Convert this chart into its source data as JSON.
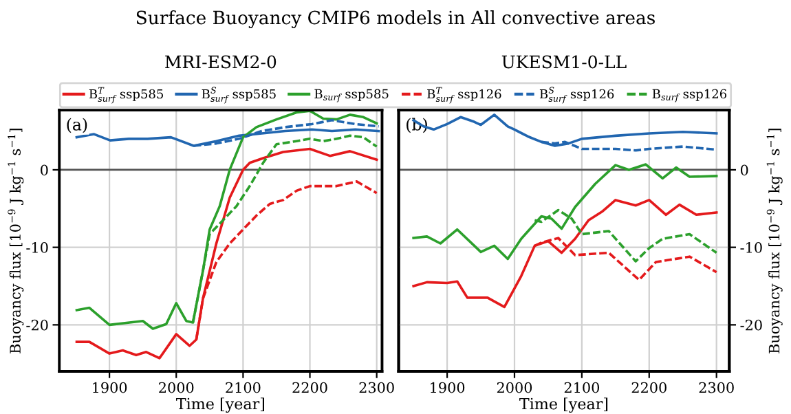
{
  "chart_data": [
    {
      "type": "line",
      "title": "MRI-ESM2-0",
      "xlabel": "Time [year]",
      "ylabel": "Buoyancy flux [10$^{−9}$ J kg$^{−1}$ s$^{−1}$]",
      "annotations": [
        "Surface Buoyancy CMIP6 models in All convective areas",
        {
          "text": "(a)"
        }
      ],
      "xlim": [
        1825,
        2308
      ],
      "xticks": [
        1900,
        2000,
        2100,
        2200,
        2300
      ],
      "ylim": [
        -26,
        7.7
      ],
      "yticks": [
        0,
        -10,
        -20
      ],
      "grid": true,
      "legend": "top",
      "ref_lines": [
        {
          "axis": "y",
          "value": 0,
          "color": "#555555"
        }
      ],
      "series": [
        {
          "name": "B$^{T}$$_{surf}$ ssp585",
          "color": "#e41a1c",
          "line_style": "solid",
          "x": [
            1851,
            1870,
            1900,
            1920,
            1940,
            1955,
            1975,
            2000,
            2020,
            2030,
            2040,
            2060,
            2080,
            2100,
            2110,
            2130,
            2160,
            2200,
            2230,
            2260,
            2300
          ],
          "values": [
            -22.2,
            -22.2,
            -23.7,
            -23.3,
            -23.9,
            -23.5,
            -24.3,
            -21.2,
            -22.7,
            -21.9,
            -16.6,
            -9.5,
            -3.6,
            0,
            0.9,
            1.5,
            2.3,
            2.7,
            1.8,
            2.4,
            1.3
          ]
        },
        {
          "name": "B$^{S}$$_{surf}$ ssp585",
          "color": "#2166b0",
          "line_style": "solid",
          "x": [
            1851,
            1877,
            1901,
            1929,
            1957,
            1992,
            2026,
            2060,
            2094,
            2128,
            2163,
            2203,
            2233,
            2268,
            2303
          ],
          "values": [
            4.2,
            4.6,
            3.8,
            4.0,
            4.0,
            4.2,
            3.1,
            3.7,
            4.4,
            4.7,
            5.0,
            5.2,
            5.0,
            5.2,
            5.0
          ]
        },
        {
          "name": "B$_{surf}$ ssp585",
          "color": "#2ca02c",
          "line_style": "solid",
          "x": [
            1851,
            1870,
            1900,
            1930,
            1950,
            1965,
            1985,
            2000,
            2015,
            2025,
            2040,
            2050,
            2065,
            2080,
            2100,
            2120,
            2150,
            2180,
            2200,
            2220,
            2240,
            2260,
            2280,
            2300
          ],
          "values": [
            -18.1,
            -17.8,
            -20.0,
            -19.7,
            -19.5,
            -20.5,
            -19.9,
            -17.2,
            -19.5,
            -19.7,
            -13.0,
            -7.7,
            -4.7,
            0,
            4.2,
            5.5,
            6.5,
            7.4,
            7.6,
            6.6,
            6.5,
            7.1,
            6.8,
            6.0
          ]
        },
        {
          "name": "B$^{T}$$_{surf}$ ssp126",
          "color": "#e41a1c",
          "line_style": "dashed",
          "x": [
            2030,
            2040,
            2060,
            2080,
            2100,
            2120,
            2140,
            2160,
            2180,
            2200,
            2240,
            2270,
            2300
          ],
          "values": [
            -21.9,
            -16.6,
            -11.9,
            -9.5,
            -7.7,
            -5.9,
            -4.4,
            -3.9,
            -2.7,
            -2.1,
            -2.1,
            -1.5,
            -3.0
          ]
        },
        {
          "name": "B$^{S}$$_{surf}$ ssp126",
          "color": "#2166b0",
          "line_style": "dashed",
          "x": [
            2026,
            2060,
            2094,
            2128,
            2163,
            2203,
            2233,
            2268,
            2303
          ],
          "values": [
            3.1,
            3.4,
            4.0,
            5.0,
            5.5,
            5.9,
            6.4,
            5.9,
            5.6
          ]
        },
        {
          "name": "B$_{surf}$ ssp126",
          "color": "#2ca02c",
          "line_style": "dashed",
          "x": [
            2025,
            2040,
            2050,
            2070,
            2090,
            2110,
            2130,
            2150,
            2180,
            2200,
            2220,
            2240,
            2260,
            2280,
            2300
          ],
          "values": [
            -19.7,
            -13.0,
            -8.3,
            -6.5,
            -4.7,
            -2.1,
            0.9,
            3.3,
            3.7,
            4.0,
            3.7,
            4.0,
            4.4,
            4.2,
            3.0
          ]
        }
      ]
    },
    {
      "type": "line",
      "title": "UKESM1-0-LL",
      "xlabel": "Time [year]",
      "y2label": "Buoyancy flux [10$^{−9}$ J kg$^{−1}$ s$^{−1}$]",
      "annotations": [
        {
          "text": "(b)"
        }
      ],
      "xlim": [
        1828,
        2319
      ],
      "xticks": [
        1900,
        2000,
        2100,
        2200,
        2300
      ],
      "y2lim": [
        -26,
        7.7
      ],
      "y2ticks": [
        0,
        -10,
        -20
      ],
      "grid": true,
      "ref_lines": [
        {
          "axis": "y2",
          "value": 0,
          "color": "#555555"
        }
      ],
      "series": [
        {
          "axis": "y2",
          "color": "#e41a1c",
          "line_style": "solid",
          "x": [
            1850,
            1870,
            1900,
            1915,
            1930,
            1960,
            1985,
            2010,
            2030,
            2050,
            2070,
            2090,
            2110,
            2130,
            2150,
            2180,
            2200,
            2225,
            2245,
            2270,
            2300
          ],
          "values": [
            -15.0,
            -14.5,
            -14.6,
            -14.4,
            -16.5,
            -16.5,
            -17.7,
            -13.7,
            -9.8,
            -9.2,
            -10.7,
            -8.9,
            -6.5,
            -5.4,
            -3.9,
            -4.6,
            -3.9,
            -5.8,
            -4.5,
            -5.8,
            -5.5
          ]
        },
        {
          "axis": "y2",
          "color": "#2166b0",
          "line_style": "solid",
          "x": [
            1850,
            1865,
            1880,
            1900,
            1920,
            1940,
            1950,
            1970,
            1990,
            2000,
            2020,
            2040,
            2060,
            2080,
            2100,
            2150,
            2200,
            2250,
            2300
          ],
          "values": [
            6.4,
            5.6,
            5.2,
            5.9,
            6.8,
            6.2,
            5.8,
            7.1,
            5.6,
            5.2,
            4.3,
            3.6,
            3.1,
            3.4,
            4.0,
            4.4,
            4.7,
            4.9,
            4.7
          ]
        },
        {
          "axis": "y2",
          "color": "#2ca02c",
          "line_style": "solid",
          "x": [
            1850,
            1870,
            1890,
            1915,
            1950,
            1970,
            1990,
            2010,
            2040,
            2055,
            2070,
            2090,
            2120,
            2150,
            2170,
            2195,
            2220,
            2240,
            2260,
            2300
          ],
          "values": [
            -8.8,
            -8.6,
            -9.5,
            -7.7,
            -10.6,
            -9.8,
            -11.5,
            -8.9,
            -6.0,
            -6.3,
            -7.6,
            -4.8,
            -1.8,
            0.6,
            0,
            0.7,
            -1.1,
            0.3,
            -0.9,
            -0.8
          ]
        },
        {
          "axis": "y2",
          "color": "#e41a1c",
          "line_style": "dashed",
          "x": [
            2030,
            2040,
            2065,
            2090,
            2140,
            2185,
            2210,
            2260,
            2300
          ],
          "values": [
            -9.8,
            -9.4,
            -8.8,
            -11.0,
            -10.7,
            -14.2,
            -11.9,
            -11.2,
            -13.2
          ]
        },
        {
          "axis": "y2",
          "color": "#2166b0",
          "line_style": "dashed",
          "x": [
            2040,
            2060,
            2075,
            2100,
            2150,
            2180,
            2200,
            2250,
            2300
          ],
          "values": [
            3.6,
            3.4,
            3.6,
            2.7,
            2.7,
            2.5,
            2.7,
            3.0,
            2.6
          ]
        },
        {
          "axis": "y2",
          "color": "#2ca02c",
          "line_style": "dashed",
          "x": [
            2030,
            2040,
            2065,
            2085,
            2100,
            2140,
            2180,
            2200,
            2220,
            2260,
            2300
          ],
          "values": [
            -6.5,
            -6.7,
            -5.2,
            -6.3,
            -8.3,
            -7.9,
            -11.8,
            -10.1,
            -8.9,
            -8.3,
            -10.7
          ]
        }
      ]
    }
  ]
}
